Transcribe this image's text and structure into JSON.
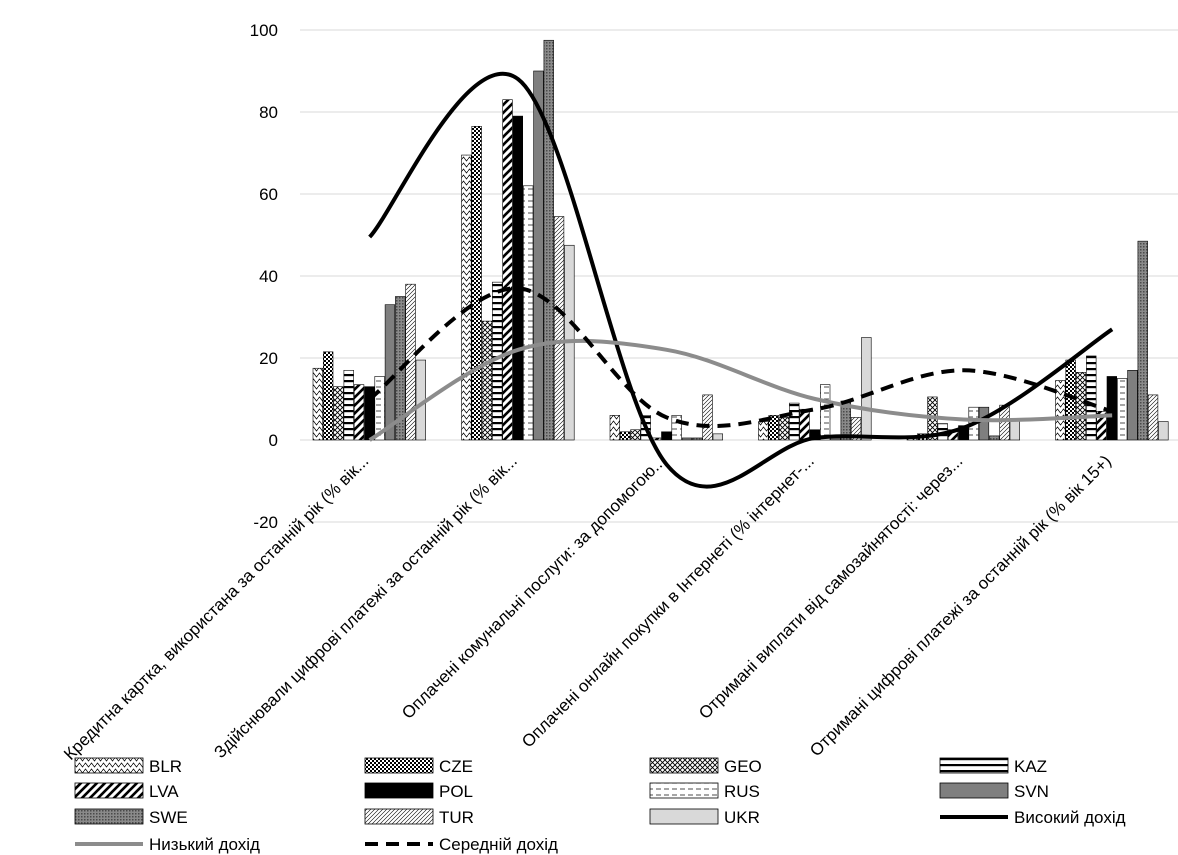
{
  "chart_data": {
    "type": "bar",
    "title": "",
    "xlabel": "",
    "ylabel": "",
    "ylim": [
      -20,
      100
    ],
    "yticks": [
      -20,
      0,
      20,
      40,
      60,
      80,
      100
    ],
    "grid": true,
    "legend_position": "bottom",
    "categories": [
      "Кредитна картка, використана за останній рік (% вік...",
      "Здійснювали цифрові платежі за останній рік (% вік...",
      "Оплачені комунальні послуги: за допомогою...",
      "Оплачені онлайн покупки в Інтернеті (% інтернет-...",
      "Отримані виплати від самозайнятості: через...",
      "Отримані цифрові платежі за останній рік (% вік 15+)"
    ],
    "series": [
      {
        "name": "BLR",
        "values": [
          17.5,
          69.5,
          6.0,
          4.5,
          0.5,
          14.5
        ]
      },
      {
        "name": "CZE",
        "values": [
          21.5,
          76.5,
          2.0,
          6.0,
          1.5,
          19.5
        ]
      },
      {
        "name": "GEO",
        "values": [
          13.0,
          29.0,
          2.5,
          5.5,
          10.5,
          16.5
        ]
      },
      {
        "name": "KAZ",
        "values": [
          17.0,
          38.5,
          6.0,
          9.0,
          4.0,
          20.5
        ]
      },
      {
        "name": "LVA",
        "values": [
          13.5,
          83.0,
          0.5,
          7.5,
          2.5,
          7.0
        ]
      },
      {
        "name": "POL",
        "values": [
          13.0,
          79.0,
          2.0,
          2.5,
          3.5,
          15.5
        ]
      },
      {
        "name": "RUS",
        "values": [
          15.5,
          62.0,
          6.0,
          13.5,
          8.0,
          15.0
        ]
      },
      {
        "name": "SVN",
        "values": [
          33.0,
          90.0,
          0.5,
          0.5,
          8.0,
          17.0
        ]
      },
      {
        "name": "SWE",
        "values": [
          35.0,
          97.5,
          0.5,
          9.5,
          1.0,
          48.5
        ]
      },
      {
        "name": "TUR",
        "values": [
          38.0,
          54.5,
          11.0,
          5.5,
          8.5,
          11.0
        ]
      },
      {
        "name": "UKR",
        "values": [
          19.5,
          47.5,
          1.5,
          25.0,
          5.0,
          4.5
        ]
      }
    ],
    "lines": [
      {
        "name": "Високий дохід",
        "values": [
          49.5,
          88.0,
          -6.0,
          0.5,
          3.0,
          27.0
        ]
      },
      {
        "name": "Низький дохід",
        "values": [
          0.0,
          22.0,
          22.0,
          10.0,
          5.0,
          6.0
        ]
      },
      {
        "name": "Середній дохід",
        "values": [
          10.0,
          37.0,
          5.5,
          7.5,
          17.0,
          7.0
        ]
      }
    ]
  }
}
